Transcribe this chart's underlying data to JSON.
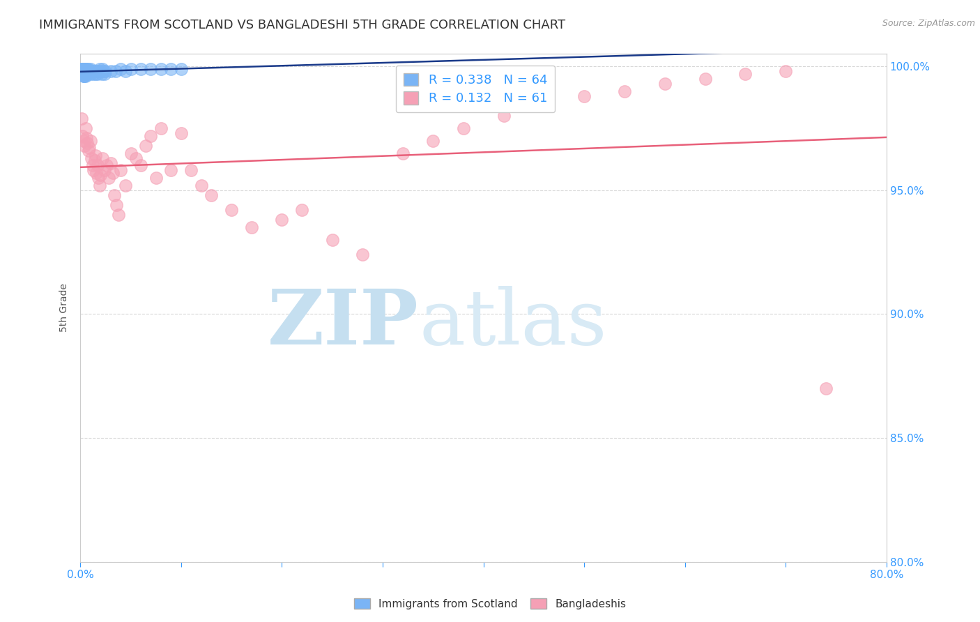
{
  "title": "IMMIGRANTS FROM SCOTLAND VS BANGLADESHI 5TH GRADE CORRELATION CHART",
  "source": "Source: ZipAtlas.com",
  "ylabel": "5th Grade",
  "xlim": [
    0.0,
    0.8
  ],
  "ylim": [
    0.8,
    1.005
  ],
  "xticks": [
    0.0,
    0.1,
    0.2,
    0.3,
    0.4,
    0.5,
    0.6,
    0.7,
    0.8
  ],
  "yticks": [
    0.8,
    0.85,
    0.9,
    0.95,
    1.0
  ],
  "yticklabels": [
    "80.0%",
    "85.0%",
    "90.0%",
    "95.0%",
    "100.0%"
  ],
  "scotland_R": 0.338,
  "scotland_N": 64,
  "bangladesh_R": 0.132,
  "bangladesh_N": 61,
  "scotland_color": "#7ab4f5",
  "bangladesh_color": "#f5a0b5",
  "trend_scotland_color": "#1a3a8a",
  "trend_bangladesh_color": "#e8607a",
  "legend_color": "#3399ff",
  "watermark_color": "#daeef8",
  "watermark_zip": "ZIP",
  "watermark_atlas": "atlas",
  "grid_color": "#d8d8d8",
  "axis_color": "#cccccc",
  "tick_color": "#3399ff",
  "title_color": "#333333",
  "title_fontsize": 13,
  "label_fontsize": 10,
  "scotland_x": [
    0.001,
    0.001,
    0.001,
    0.001,
    0.001,
    0.002,
    0.002,
    0.002,
    0.002,
    0.002,
    0.002,
    0.002,
    0.002,
    0.003,
    0.003,
    0.003,
    0.003,
    0.003,
    0.003,
    0.003,
    0.004,
    0.004,
    0.004,
    0.004,
    0.004,
    0.005,
    0.005,
    0.005,
    0.005,
    0.006,
    0.006,
    0.006,
    0.007,
    0.007,
    0.008,
    0.008,
    0.009,
    0.01,
    0.01,
    0.011,
    0.012,
    0.013,
    0.014,
    0.015,
    0.016,
    0.017,
    0.018,
    0.019,
    0.02,
    0.021,
    0.022,
    0.023,
    0.024,
    0.025,
    0.03,
    0.035,
    0.04,
    0.045,
    0.05,
    0.06,
    0.07,
    0.08,
    0.09,
    0.1
  ],
  "scotland_y": [
    0.999,
    0.999,
    0.999,
    0.998,
    0.998,
    0.999,
    0.999,
    0.999,
    0.999,
    0.998,
    0.998,
    0.998,
    0.997,
    0.999,
    0.999,
    0.998,
    0.998,
    0.997,
    0.996,
    0.996,
    0.999,
    0.998,
    0.998,
    0.997,
    0.996,
    0.999,
    0.998,
    0.997,
    0.996,
    0.999,
    0.998,
    0.997,
    0.999,
    0.997,
    0.999,
    0.998,
    0.998,
    0.999,
    0.997,
    0.998,
    0.998,
    0.997,
    0.998,
    0.997,
    0.998,
    0.997,
    0.998,
    0.999,
    0.998,
    0.997,
    0.999,
    0.998,
    0.997,
    0.998,
    0.998,
    0.998,
    0.999,
    0.998,
    0.999,
    0.999,
    0.999,
    0.999,
    0.999,
    0.999
  ],
  "bangladesh_x": [
    0.001,
    0.002,
    0.003,
    0.004,
    0.005,
    0.006,
    0.007,
    0.008,
    0.009,
    0.01,
    0.011,
    0.012,
    0.013,
    0.014,
    0.015,
    0.016,
    0.017,
    0.018,
    0.019,
    0.02,
    0.022,
    0.024,
    0.026,
    0.028,
    0.03,
    0.032,
    0.034,
    0.036,
    0.038,
    0.04,
    0.045,
    0.05,
    0.055,
    0.06,
    0.065,
    0.07,
    0.075,
    0.08,
    0.09,
    0.1,
    0.11,
    0.12,
    0.13,
    0.15,
    0.17,
    0.2,
    0.22,
    0.25,
    0.28,
    0.32,
    0.35,
    0.38,
    0.42,
    0.46,
    0.5,
    0.54,
    0.58,
    0.62,
    0.66,
    0.7,
    0.74
  ],
  "bangladesh_y": [
    0.979,
    0.972,
    0.97,
    0.968,
    0.975,
    0.971,
    0.969,
    0.966,
    0.967,
    0.97,
    0.963,
    0.96,
    0.958,
    0.962,
    0.964,
    0.957,
    0.96,
    0.955,
    0.952,
    0.956,
    0.963,
    0.958,
    0.96,
    0.955,
    0.961,
    0.957,
    0.948,
    0.944,
    0.94,
    0.958,
    0.952,
    0.965,
    0.963,
    0.96,
    0.968,
    0.972,
    0.955,
    0.975,
    0.958,
    0.973,
    0.958,
    0.952,
    0.948,
    0.942,
    0.935,
    0.938,
    0.942,
    0.93,
    0.924,
    0.965,
    0.97,
    0.975,
    0.98,
    0.985,
    0.988,
    0.99,
    0.993,
    0.995,
    0.997,
    0.998,
    0.87
  ]
}
